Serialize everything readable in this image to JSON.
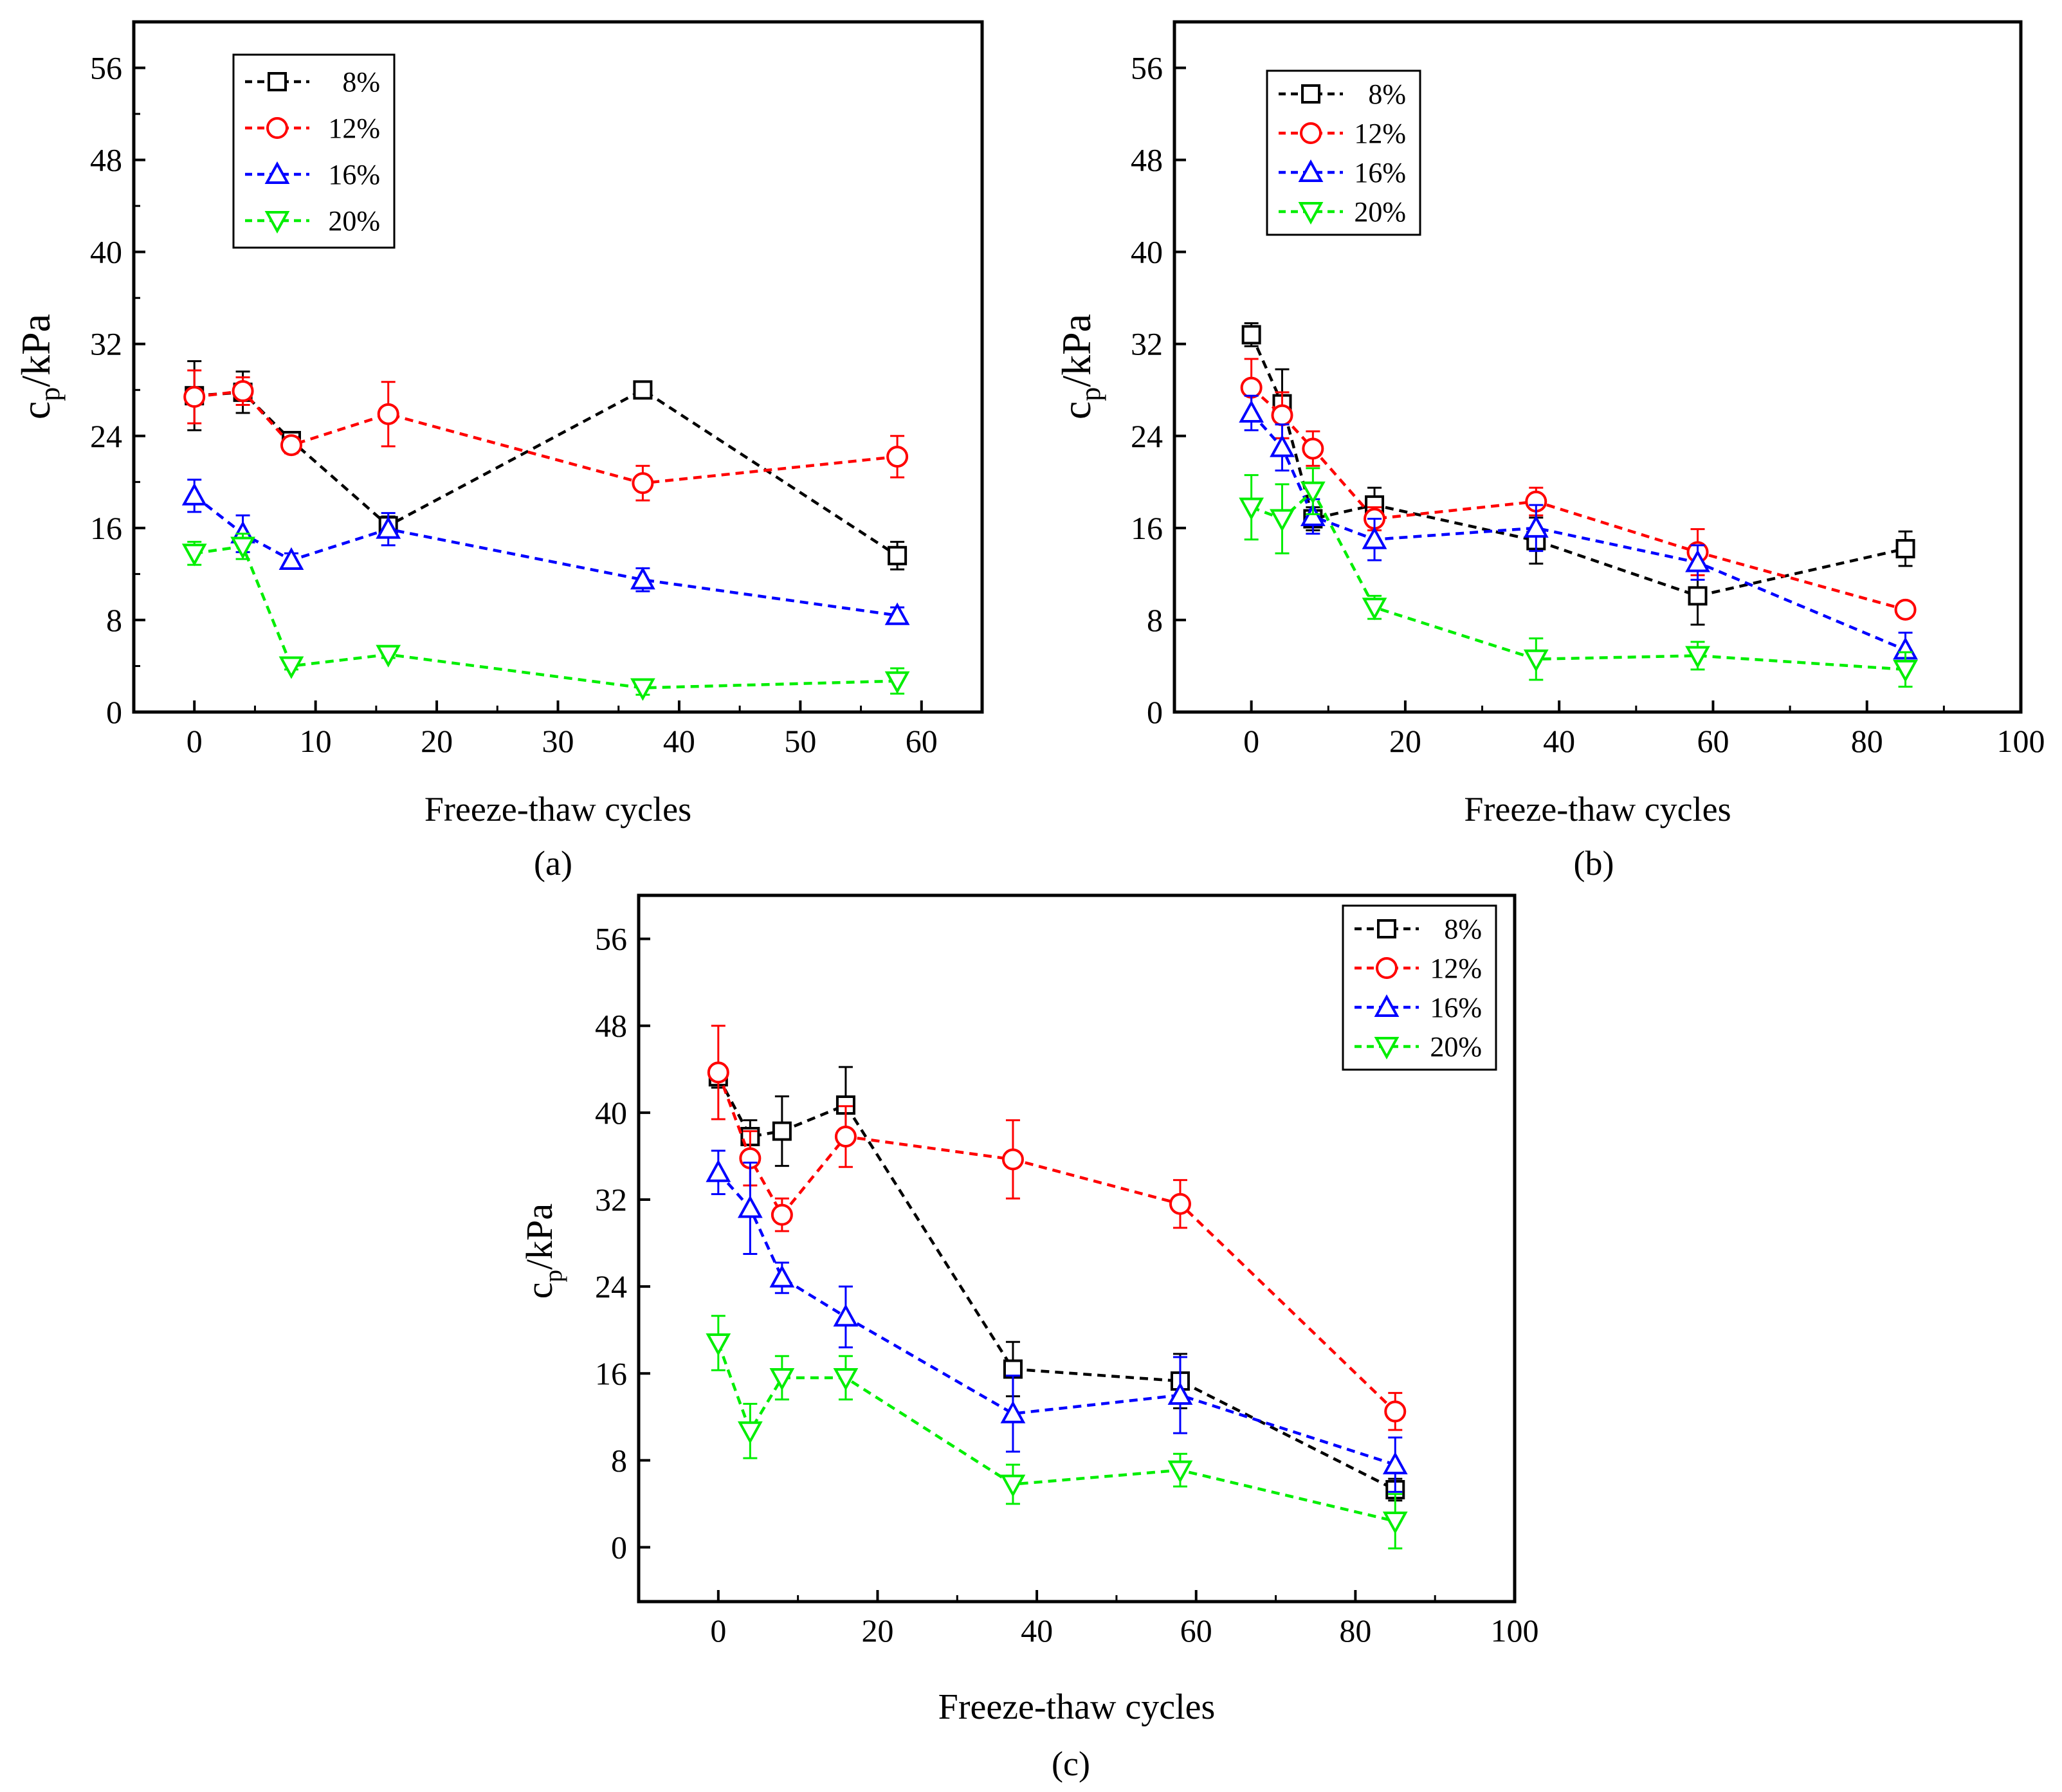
{
  "figure": {
    "captions": [
      "(a)",
      "(b)",
      "(c)"
    ]
  },
  "chart_data": [
    {
      "type": "line",
      "panel": "a",
      "xlabel": "Freeze-thaw cycles",
      "ylabel": "c_p/kPa",
      "ylabel_main": "c",
      "ylabel_sub": "p",
      "ylabel_unit": "/kPa",
      "xlim": [
        -5,
        65
      ],
      "ylim": [
        0,
        60
      ],
      "xticks": [
        0,
        10,
        20,
        30,
        40,
        50,
        60
      ],
      "yticks": [
        0,
        8,
        16,
        24,
        32,
        40,
        48,
        56
      ],
      "legend_position": "top-left",
      "grid": false,
      "series": [
        {
          "name": "8%",
          "color": "#000000",
          "marker": "square",
          "x": [
            0,
            4,
            8,
            16,
            37,
            58
          ],
          "y": [
            27.5,
            27.8,
            23.6,
            16.2,
            28.0,
            13.6
          ],
          "err": [
            3.0,
            1.8,
            0.6,
            0.8,
            0.7,
            1.2
          ]
        },
        {
          "name": "12%",
          "color": "#ff0000",
          "marker": "circle",
          "x": [
            0,
            4,
            8,
            16,
            37,
            58
          ],
          "y": [
            27.4,
            27.9,
            23.2,
            25.9,
            19.9,
            22.2
          ],
          "err": [
            2.3,
            1.2,
            0.7,
            2.8,
            1.5,
            1.8
          ]
        },
        {
          "name": "16%",
          "color": "#0000ff",
          "marker": "triangle-up",
          "x": [
            0,
            4,
            8,
            16,
            37,
            58
          ],
          "y": [
            18.8,
            15.5,
            13.2,
            15.9,
            11.5,
            8.4
          ],
          "err": [
            1.4,
            1.6,
            0.6,
            1.4,
            1.0,
            0.7
          ]
        },
        {
          "name": "20%",
          "color": "#00ee00",
          "marker": "triangle-down",
          "x": [
            0,
            4,
            8,
            16,
            37,
            58
          ],
          "y": [
            13.8,
            14.4,
            4.0,
            5.0,
            2.1,
            2.7
          ],
          "err": [
            1.0,
            1.1,
            0.3,
            0.3,
            0.6,
            1.1
          ]
        }
      ]
    },
    {
      "type": "line",
      "panel": "b",
      "xlabel": "Freeze-thaw cycles",
      "ylabel": "c_p/kPa",
      "ylabel_main": "c",
      "ylabel_sub": "p",
      "ylabel_unit": "/kPa",
      "xlim": [
        -10,
        100
      ],
      "ylim": [
        0,
        60
      ],
      "xticks": [
        0,
        20,
        40,
        60,
        80,
        100
      ],
      "yticks": [
        0,
        8,
        16,
        24,
        32,
        40,
        48,
        56
      ],
      "legend_position": "top-left",
      "grid": false,
      "series": [
        {
          "name": "8%",
          "color": "#000000",
          "marker": "square",
          "x": [
            0,
            4,
            8,
            16,
            37,
            58,
            85
          ],
          "y": [
            32.8,
            26.8,
            16.8,
            18.0,
            14.9,
            10.1,
            14.2
          ],
          "err": [
            1.0,
            3.0,
            1.0,
            1.5,
            2.0,
            2.5,
            1.5
          ]
        },
        {
          "name": "12%",
          "color": "#ff0000",
          "marker": "circle",
          "x": [
            0,
            4,
            8,
            16,
            37,
            58,
            85
          ],
          "y": [
            28.2,
            25.8,
            22.9,
            16.8,
            18.3,
            13.9,
            8.9
          ],
          "err": [
            2.5,
            2.0,
            1.5,
            1.0,
            1.2,
            2.0,
            0.5
          ]
        },
        {
          "name": "16%",
          "color": "#0000ff",
          "marker": "triangle-up",
          "x": [
            0,
            4,
            8,
            16,
            37,
            58,
            85
          ],
          "y": [
            26.0,
            23.0,
            17.0,
            15.0,
            16.0,
            13.0,
            5.4
          ],
          "err": [
            1.5,
            2.0,
            1.5,
            1.8,
            2.0,
            1.5,
            1.5
          ]
        },
        {
          "name": "20%",
          "color": "#00ee00",
          "marker": "triangle-down",
          "x": [
            0,
            4,
            8,
            16,
            37,
            58,
            85
          ],
          "y": [
            17.8,
            16.8,
            19.2,
            9.1,
            4.6,
            4.9,
            3.7
          ],
          "err": [
            2.8,
            3.0,
            2.0,
            1.0,
            1.8,
            1.2,
            1.5
          ]
        }
      ]
    },
    {
      "type": "line",
      "panel": "c",
      "xlabel": "Freeze-thaw cycles",
      "ylabel": "c_p/kPa",
      "ylabel_main": "c",
      "ylabel_sub": "p",
      "ylabel_unit": "/kPa",
      "xlim": [
        -10,
        100
      ],
      "ylim": [
        -5,
        60
      ],
      "xticks": [
        0,
        20,
        40,
        60,
        80,
        100
      ],
      "yticks": [
        0,
        8,
        16,
        24,
        32,
        40,
        48,
        56
      ],
      "legend_position": "top-right",
      "grid": false,
      "series": [
        {
          "name": "8%",
          "color": "#000000",
          "marker": "square",
          "x": [
            0,
            4,
            8,
            16,
            37,
            58,
            85
          ],
          "y": [
            43.3,
            37.8,
            38.3,
            40.7,
            16.4,
            15.3,
            5.3
          ],
          "err": [
            1.0,
            1.5,
            3.2,
            3.5,
            2.5,
            2.5,
            1.0
          ]
        },
        {
          "name": "12%",
          "color": "#ff0000",
          "marker": "circle",
          "x": [
            0,
            4,
            8,
            16,
            37,
            58,
            85
          ],
          "y": [
            43.7,
            35.8,
            30.6,
            37.8,
            35.7,
            31.6,
            12.5
          ],
          "err": [
            4.3,
            2.5,
            1.5,
            2.8,
            3.6,
            2.2,
            1.7
          ]
        },
        {
          "name": "16%",
          "color": "#0000ff",
          "marker": "triangle-up",
          "x": [
            0,
            4,
            8,
            16,
            37,
            58,
            85
          ],
          "y": [
            34.5,
            31.2,
            24.8,
            21.2,
            12.3,
            14.0,
            7.6
          ],
          "err": [
            2.0,
            4.2,
            1.4,
            2.8,
            3.5,
            3.5,
            2.5
          ]
        },
        {
          "name": "20%",
          "color": "#00ee00",
          "marker": "triangle-down",
          "x": [
            0,
            4,
            8,
            16,
            37,
            58,
            85
          ],
          "y": [
            18.8,
            10.7,
            15.6,
            15.6,
            5.8,
            7.1,
            2.4
          ],
          "err": [
            2.5,
            2.5,
            2.0,
            2.0,
            1.8,
            1.5,
            2.5
          ]
        }
      ]
    }
  ]
}
